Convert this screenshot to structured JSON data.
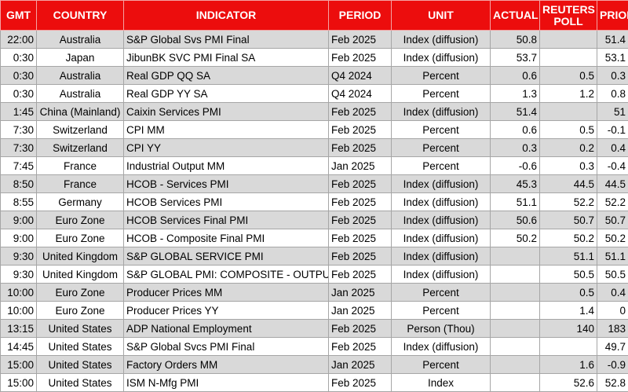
{
  "headers": {
    "gmt": "GMT",
    "country": "COUNTRY",
    "indicator": "INDICATOR",
    "period": "PERIOD",
    "unit": "UNIT",
    "actual": "ACTUAL",
    "poll_line1": "REUTERS",
    "poll_line2": "POLL",
    "prior": "PRIOR"
  },
  "colors": {
    "header_bg": "#ec0d0d",
    "header_text": "#ffffff",
    "row_shade": "#d9d9d9"
  },
  "rows": [
    {
      "gmt": "22:00",
      "country": "Australia",
      "indicator": "S&P Global Svs PMI Final",
      "period": "Feb 2025",
      "unit": "Index (diffusion)",
      "actual": "50.8",
      "poll": "",
      "prior": "51.4"
    },
    {
      "gmt": "0:30",
      "country": "Japan",
      "indicator": "JibunBK SVC PMI Final SA",
      "period": "Feb 2025",
      "unit": "Index (diffusion)",
      "actual": "53.7",
      "poll": "",
      "prior": "53.1"
    },
    {
      "gmt": "0:30",
      "country": "Australia",
      "indicator": "Real GDP QQ SA",
      "period": "Q4 2024",
      "unit": "Percent",
      "actual": "0.6",
      "poll": "0.5",
      "prior": "0.3"
    },
    {
      "gmt": "0:30",
      "country": "Australia",
      "indicator": "Real GDP YY SA",
      "period": "Q4 2024",
      "unit": "Percent",
      "actual": "1.3",
      "poll": "1.2",
      "prior": "0.8"
    },
    {
      "gmt": "1:45",
      "country": "China (Mainland)",
      "indicator": "Caixin Services PMI",
      "period": "Feb 2025",
      "unit": "Index (diffusion)",
      "actual": "51.4",
      "poll": "",
      "prior": "51"
    },
    {
      "gmt": "7:30",
      "country": "Switzerland",
      "indicator": "CPI MM",
      "period": "Feb 2025",
      "unit": "Percent",
      "actual": "0.6",
      "poll": "0.5",
      "prior": "-0.1"
    },
    {
      "gmt": "7:30",
      "country": "Switzerland",
      "indicator": "CPI YY",
      "period": "Feb 2025",
      "unit": "Percent",
      "actual": "0.3",
      "poll": "0.2",
      "prior": "0.4"
    },
    {
      "gmt": "7:45",
      "country": "France",
      "indicator": "Industrial Output MM",
      "period": "Jan 2025",
      "unit": "Percent",
      "actual": "-0.6",
      "poll": "0.3",
      "prior": "-0.4"
    },
    {
      "gmt": "8:50",
      "country": "France",
      "indicator": "HCOB - Services PMI",
      "period": "Feb 2025",
      "unit": "Index (diffusion)",
      "actual": "45.3",
      "poll": "44.5",
      "prior": "44.5"
    },
    {
      "gmt": "8:55",
      "country": "Germany",
      "indicator": "HCOB Services PMI",
      "period": "Feb 2025",
      "unit": "Index (diffusion)",
      "actual": "51.1",
      "poll": "52.2",
      "prior": "52.2"
    },
    {
      "gmt": "9:00",
      "country": "Euro Zone",
      "indicator": "HCOB Services Final PMI",
      "period": "Feb 2025",
      "unit": "Index (diffusion)",
      "actual": "50.6",
      "poll": "50.7",
      "prior": "50.7"
    },
    {
      "gmt": "9:00",
      "country": "Euro Zone",
      "indicator": "HCOB - Composite Final PMI",
      "period": "Feb 2025",
      "unit": "Index (diffusion)",
      "actual": "50.2",
      "poll": "50.2",
      "prior": "50.2"
    },
    {
      "gmt": "9:30",
      "country": "United Kingdom",
      "indicator": "S&P GLOBAL SERVICE PMI",
      "period": "Feb 2025",
      "unit": "Index (diffusion)",
      "actual": "",
      "poll": "51.1",
      "prior": "51.1"
    },
    {
      "gmt": "9:30",
      "country": "United Kingdom",
      "indicator": "S&P GLOBAL PMI: COMPOSITE - OUTPUT",
      "period": "Feb 2025",
      "unit": "Index (diffusion)",
      "actual": "",
      "poll": "50.5",
      "prior": "50.5"
    },
    {
      "gmt": "10:00",
      "country": "Euro Zone",
      "indicator": "Producer Prices MM",
      "period": "Jan 2025",
      "unit": "Percent",
      "actual": "",
      "poll": "0.5",
      "prior": "0.4"
    },
    {
      "gmt": "10:00",
      "country": "Euro Zone",
      "indicator": "Producer Prices YY",
      "period": "Jan 2025",
      "unit": "Percent",
      "actual": "",
      "poll": "1.4",
      "prior": "0"
    },
    {
      "gmt": "13:15",
      "country": "United States",
      "indicator": "ADP National Employment",
      "period": "Feb 2025",
      "unit": "Person (Thou)",
      "actual": "",
      "poll": "140",
      "prior": "183"
    },
    {
      "gmt": "14:45",
      "country": "United States",
      "indicator": "S&P Global Svcs PMI Final",
      "period": "Feb 2025",
      "unit": "Index (diffusion)",
      "actual": "",
      "poll": "",
      "prior": "49.7"
    },
    {
      "gmt": "15:00",
      "country": "United States",
      "indicator": "Factory Orders MM",
      "period": "Jan 2025",
      "unit": "Percent",
      "actual": "",
      "poll": "1.6",
      "prior": "-0.9"
    },
    {
      "gmt": "15:00",
      "country": "United States",
      "indicator": "ISM N-Mfg PMI",
      "period": "Feb 2025",
      "unit": "Index",
      "actual": "",
      "poll": "52.6",
      "prior": "52.8"
    }
  ]
}
